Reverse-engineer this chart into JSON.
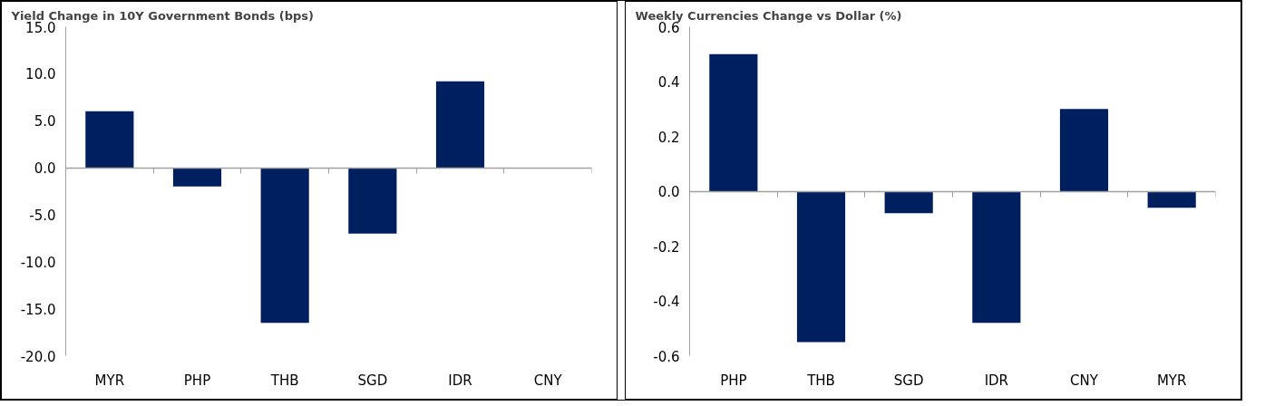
{
  "chart_data": [
    {
      "type": "bar",
      "title": "Yield Change in 10Y Government Bonds (bps)",
      "categories": [
        "MYR",
        "PHP",
        "THB",
        "SGD",
        "IDR",
        "CNY"
      ],
      "series": [
        {
          "color": "#001f5f",
          "values": [
            6.0,
            -2.0,
            -16.5,
            -7.0,
            9.2,
            0
          ]
        }
      ],
      "ylim": [
        -20,
        15
      ],
      "yticks": [
        {
          "value": -20,
          "label": "-20.0"
        },
        {
          "value": -15,
          "label": "-15.0"
        },
        {
          "value": -10,
          "label": "-10.0"
        },
        {
          "value": -5,
          "label": "-5.0"
        },
        {
          "value": 0,
          "label": "0.0"
        },
        {
          "value": 5,
          "label": "5.0"
        },
        {
          "value": 10,
          "label": "10.0"
        },
        {
          "value": 15,
          "label": "15.0"
        }
      ]
    },
    {
      "type": "bar",
      "title": "Weekly Currencies Change vs Dollar (%)",
      "categories": [
        "PHP",
        "THB",
        "SGD",
        "IDR",
        "CNY",
        "MYR"
      ],
      "series": [
        {
          "color": "#001f5f",
          "values": [
            0.5,
            -0.55,
            -0.08,
            -0.48,
            0.3,
            -0.06
          ]
        }
      ],
      "ylim": [
        -0.6,
        0.6
      ],
      "yticks": [
        {
          "value": -0.6,
          "label": "-0.6"
        },
        {
          "value": -0.4,
          "label": "-0.4"
        },
        {
          "value": -0.2,
          "label": "-0.2"
        },
        {
          "value": 0,
          "label": "0.0"
        },
        {
          "value": 0.2,
          "label": "0.2"
        },
        {
          "value": 0.4,
          "label": "0.4"
        },
        {
          "value": 0.6,
          "label": "0.6"
        }
      ]
    }
  ]
}
